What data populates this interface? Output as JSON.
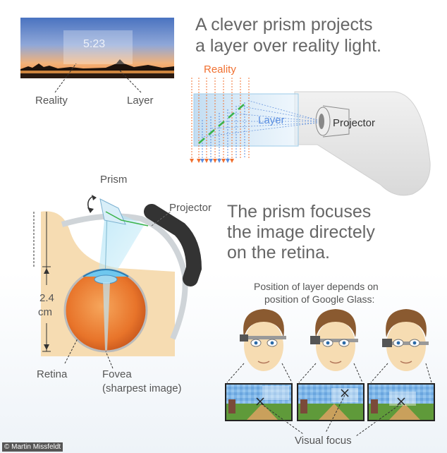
{
  "top_photo": {
    "time_overlay": "5:23",
    "reality_label": "Reality",
    "layer_label": "Layer"
  },
  "headline_1": {
    "line1": "A clever prism projects",
    "line2": "a layer over reality light."
  },
  "prism_diagram": {
    "reality_label": "Reality",
    "layer_label": "Layer",
    "projector_label": "Projector"
  },
  "eye_diagram": {
    "prism_label": "Prism",
    "projector_label": "Projector",
    "dimension_value": "2.4",
    "dimension_unit": "cm",
    "retina_label": "Retina",
    "fovea_label": "Fovea",
    "fovea_note": "(sharpest image)"
  },
  "headline_2": {
    "line1": "The prism focuses",
    "line2": "the image directely",
    "line3": "on the retina."
  },
  "position_note": {
    "line1": "Position of layer depends on",
    "line2": "position of Google Glass:"
  },
  "visual_focus_label": "Visual focus",
  "credit": "© Martin Missfeldt",
  "colors": {
    "reality_orange": "#f07030",
    "layer_blue": "#5a8ee0",
    "prism_green": "#3bb34a",
    "eye_orange": "#e8742a",
    "skin": "#f6dcb2",
    "hair": "#8a5a30"
  }
}
